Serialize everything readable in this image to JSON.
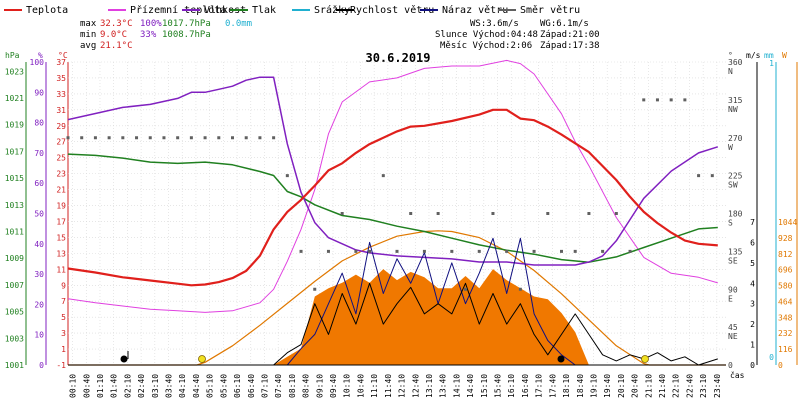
{
  "chart_data": {
    "type": "line",
    "title": "30.6.2019",
    "legend": [
      {
        "name": "Teplota",
        "color": "#e0201c"
      },
      {
        "name": "Přízemní teplota",
        "color": "#e040e0"
      },
      {
        "name": "Vlhkost",
        "color": "#8020c0"
      },
      {
        "name": "Tlak",
        "color": "#208020"
      },
      {
        "name": "Srážky",
        "color": "#20b0d0"
      },
      {
        "name": "Rychlost větru",
        "color": "#000000"
      },
      {
        "name": "Náraz větru",
        "color": "#101080"
      },
      {
        "name": "Směr větru",
        "color": "#606060"
      }
    ],
    "stats": {
      "max": {
        "label": "max",
        "temp": "32.3°C",
        "hum": "100%",
        "press": "1017.7hPa",
        "rain": "0.0mm"
      },
      "min": {
        "label": "min",
        "temp": "9.0°C",
        "hum": "33%",
        "press": "1008.7hPa"
      },
      "avg": {
        "label": "avg",
        "temp": "21.1°C"
      }
    },
    "info": {
      "ws": "WS:3.6m/s",
      "wg": "WG:6.1m/s",
      "sun": "Slunce Východ:04:48",
      "sun_set": "Západ:21:00",
      "moon": "Měsíc Východ:2:06",
      "moon_set": "Západ:17:38"
    },
    "axis_units": {
      "hpa": "hPa",
      "pct": "%",
      "c": "°C",
      "dir": "°",
      "ms": "m/s",
      "mm": "mm",
      "wm2": "W",
      "time": "čas"
    },
    "x_time_labels": [
      "00:10",
      "00:40",
      "01:10",
      "01:40",
      "02:10",
      "02:40",
      "03:10",
      "03:40",
      "04:10",
      "04:40",
      "05:10",
      "05:40",
      "06:10",
      "06:40",
      "07:10",
      "07:40",
      "08:10",
      "08:40",
      "09:10",
      "09:40",
      "10:10",
      "10:40",
      "11:10",
      "11:40",
      "12:10",
      "12:40",
      "13:10",
      "13:40",
      "14:10",
      "14:40",
      "15:10",
      "15:40",
      "16:10",
      "16:40",
      "17:10",
      "17:40",
      "18:10",
      "18:40",
      "19:10",
      "19:40",
      "20:10",
      "20:40",
      "21:10",
      "21:40",
      "22:10",
      "22:40",
      "23:10",
      "23:40"
    ],
    "y_hpa_ticks": [
      "1023",
      "1021",
      "1019",
      "1017",
      "1015",
      "1013",
      "1011",
      "1009",
      "1007",
      "1005",
      "1003",
      "1001"
    ],
    "y_pct_ticks": [
      "100",
      "90",
      "80",
      "70",
      "60",
      "50",
      "40",
      "30",
      "20",
      "10",
      "0"
    ],
    "y_temp_ticks": [
      "37",
      "35",
      "33",
      "31",
      "29",
      "27",
      "25",
      "23",
      "21",
      "19",
      "17",
      "15",
      "13",
      "11",
      "9",
      "7",
      "5",
      "3",
      "1",
      "-1"
    ],
    "y_dir_ticks": [
      {
        "deg": "360",
        "dir": "N"
      },
      {
        "deg": "315",
        "dir": "NW"
      },
      {
        "deg": "270",
        "dir": "W"
      },
      {
        "deg": "225",
        "dir": "SW"
      },
      {
        "deg": "180",
        "dir": "S"
      },
      {
        "deg": "135",
        "dir": "SE"
      },
      {
        "deg": "90",
        "dir": "E"
      },
      {
        "deg": "45",
        "dir": "NE"
      },
      {
        "deg": "0",
        "dir": ""
      }
    ],
    "y_ms_ticks": [
      "7",
      "6",
      "5",
      "4",
      "3",
      "2",
      "1",
      "0"
    ],
    "y_mm_ticks": [
      "1",
      "0"
    ],
    "y_wm2_ticks": [
      "1044",
      "928",
      "812",
      "696",
      "580",
      "464",
      "348",
      "232",
      "116",
      "0"
    ],
    "x_range_hours": [
      0,
      24
    ],
    "temperature_c": {
      "t": [
        0,
        1,
        2,
        3,
        4,
        4.5,
        5,
        5.5,
        6,
        6.5,
        7,
        7.5,
        8,
        8.5,
        9,
        9.5,
        10,
        10.5,
        11,
        12,
        12.5,
        13,
        14,
        15,
        15.5,
        16,
        16.5,
        17,
        17.5,
        18,
        19,
        20,
        20.5,
        21,
        21.5,
        22,
        22.5,
        23,
        23.7
      ],
      "v": [
        11.1,
        10.6,
        10.0,
        9.6,
        9.2,
        9.0,
        9.1,
        9.4,
        9.9,
        10.8,
        12.7,
        16.0,
        18.2,
        19.7,
        21.5,
        23.4,
        24.3,
        25.6,
        26.7,
        28.3,
        28.9,
        29.0,
        29.6,
        30.4,
        31.0,
        31.0,
        29.9,
        29.7,
        28.9,
        27.9,
        25.7,
        22.2,
        20.1,
        18.2,
        16.8,
        15.6,
        14.6,
        14.2,
        14.0
      ]
    },
    "ground_temp_c": {
      "t": [
        0,
        1,
        2,
        3,
        4,
        5,
        6,
        7,
        7.5,
        8,
        8.5,
        9,
        9.5,
        10,
        11,
        12,
        13,
        14,
        15,
        16,
        16.5,
        17,
        17.5,
        18,
        18.5,
        19,
        20,
        21,
        22,
        23,
        23.7
      ],
      "v": [
        7.3,
        6.8,
        6.4,
        6.0,
        5.8,
        5.6,
        5.8,
        6.8,
        8.5,
        12.0,
        16.0,
        21.0,
        28.0,
        32.0,
        34.5,
        35.0,
        36.2,
        36.5,
        36.5,
        37.2,
        36.8,
        35.5,
        33.0,
        30.5,
        27.0,
        24.0,
        17.5,
        12.5,
        10.5,
        10.0,
        9.3
      ]
    },
    "humidity_pct": {
      "t": [
        0,
        1,
        2,
        3,
        4,
        4.5,
        5,
        5.5,
        6,
        6.5,
        7,
        7.5,
        8,
        8.5,
        9,
        9.5,
        10,
        10.5,
        11,
        12,
        13,
        14,
        15,
        16,
        17,
        17.5,
        18,
        18.5,
        19,
        19.5,
        20,
        20.5,
        21,
        22,
        23,
        23.7
      ],
      "v": [
        81,
        83,
        85,
        86,
        88,
        90,
        90,
        91,
        92,
        94,
        95,
        95,
        73,
        57,
        47,
        42,
        40,
        38,
        37,
        36,
        35.5,
        35,
        34,
        34,
        33,
        33,
        33,
        33,
        34,
        36,
        41,
        48,
        55,
        64,
        70,
        72
      ]
    },
    "pressure_hpa": {
      "t": [
        0,
        1,
        2,
        3,
        4,
        5,
        6,
        7,
        7.5,
        8,
        8.5,
        9,
        10,
        11,
        12,
        13,
        14,
        15,
        16,
        17,
        18,
        19,
        20,
        21,
        22,
        23,
        23.7
      ],
      "v": [
        1016.8,
        1016.7,
        1016.5,
        1016.2,
        1016.1,
        1016.2,
        1016.0,
        1015.5,
        1015.2,
        1014.0,
        1013.6,
        1013.0,
        1012.2,
        1011.9,
        1011.4,
        1011.0,
        1010.5,
        1010.0,
        1009.6,
        1009.3,
        1008.9,
        1008.7,
        1009.1,
        1009.8,
        1010.5,
        1011.2,
        1011.3
      ]
    },
    "solar_wm2": {
      "t": [
        0,
        4.7,
        5,
        6,
        7,
        8,
        9,
        10,
        11,
        12,
        13,
        13.5,
        14,
        15,
        16,
        17,
        18,
        19,
        20,
        21,
        21.2,
        24
      ],
      "v": [
        0,
        0,
        20,
        140,
        290,
        450,
        610,
        760,
        860,
        940,
        975,
        980,
        975,
        930,
        830,
        690,
        520,
        330,
        140,
        10,
        0,
        0
      ]
    },
    "solar_measured_wm2": {
      "t": [
        7.5,
        8,
        8.5,
        9,
        9.5,
        10,
        10.5,
        11,
        11.5,
        12,
        12.5,
        13,
        13.5,
        14,
        14.5,
        15,
        15.5,
        16,
        16.5,
        17,
        17.5,
        18,
        18.5,
        19
      ],
      "v": [
        0,
        60,
        120,
        500,
        560,
        600,
        660,
        600,
        700,
        620,
        680,
        640,
        560,
        560,
        650,
        560,
        700,
        620,
        560,
        500,
        480,
        380,
        240,
        0
      ]
    },
    "wind_speed_ms": {
      "t": [
        0,
        2,
        4,
        6,
        7.5,
        8,
        8.5,
        9,
        9.5,
        10,
        10.5,
        11,
        11.5,
        12,
        12.5,
        13,
        13.5,
        14,
        14.5,
        15,
        15.5,
        16,
        16.5,
        17,
        17.5,
        18,
        18.5,
        19,
        19.5,
        20,
        20.5,
        21,
        21.5,
        22,
        22.5,
        23,
        23.7
      ],
      "v": [
        0,
        0,
        0,
        0,
        0,
        0.6,
        1,
        3,
        1.5,
        3.5,
        2,
        4,
        2,
        3,
        3.8,
        2.5,
        3,
        2.5,
        4,
        2,
        3.5,
        2,
        3,
        1.5,
        0.5,
        1.5,
        2.5,
        1.5,
        0.5,
        0.2,
        0.5,
        0.3,
        0.6,
        0.2,
        0.4,
        0,
        0.3
      ]
    },
    "wind_gust_ms": {
      "t": [
        0,
        8,
        8.5,
        9,
        9.5,
        10,
        10.5,
        11,
        11.5,
        12,
        12.5,
        13,
        13.5,
        14,
        14.5,
        15,
        15.5,
        16,
        16.5,
        17,
        17.5,
        18,
        18.5,
        19,
        24
      ],
      "v": [
        0,
        0,
        0.8,
        1.5,
        3,
        4.5,
        2.5,
        6,
        3.5,
        5.2,
        4,
        5.5,
        3,
        5,
        3,
        4.5,
        6.2,
        3.5,
        6.2,
        2.5,
        1.2,
        0.5,
        0,
        0,
        0
      ]
    },
    "wind_direction_deg": {
      "t": [
        0,
        0.5,
        1,
        1.5,
        2,
        2.5,
        3,
        3.5,
        4,
        4.5,
        5,
        5.5,
        6,
        6.5,
        7,
        7.5,
        8,
        8.5,
        9,
        9.5,
        10,
        10.5,
        11,
        11.5,
        12,
        12.5,
        13,
        13.5,
        14,
        14.5,
        15,
        15.5,
        16,
        16.5,
        17,
        17.5,
        18,
        18.5,
        19,
        19.5,
        20,
        20.5,
        21,
        21.5,
        22,
        22.5,
        23,
        23.5
      ],
      "v": [
        270,
        270,
        270,
        270,
        270,
        270,
        270,
        270,
        270,
        270,
        270,
        270,
        270,
        270,
        270,
        270,
        225,
        135,
        90,
        135,
        180,
        135,
        135,
        225,
        135,
        180,
        135,
        180,
        135,
        90,
        135,
        180,
        135,
        90,
        135,
        180,
        135,
        135,
        180,
        135,
        180,
        135,
        315,
        315,
        315,
        315,
        225,
        225
      ]
    }
  }
}
